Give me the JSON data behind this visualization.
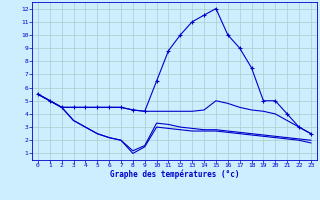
{
  "title": "Graphe des températures (°c)",
  "background_color": "#cceeff",
  "grid_color": "#aacccc",
  "line_color": "#0000cc",
  "xlim": [
    -0.5,
    23.5
  ],
  "ylim": [
    0.5,
    12.5
  ],
  "xticks": [
    0,
    1,
    2,
    3,
    4,
    5,
    6,
    7,
    8,
    9,
    10,
    11,
    12,
    13,
    14,
    15,
    16,
    17,
    18,
    19,
    20,
    21,
    22,
    23
  ],
  "yticks": [
    1,
    2,
    3,
    4,
    5,
    6,
    7,
    8,
    9,
    10,
    11,
    12
  ],
  "line1_x": [
    0,
    1,
    2,
    3,
    4,
    5,
    6,
    7,
    8,
    9,
    10,
    11,
    12,
    13,
    14,
    15,
    16,
    17,
    18,
    19,
    20,
    21,
    22,
    23
  ],
  "line1_y": [
    5.5,
    5.0,
    4.5,
    4.5,
    4.5,
    4.5,
    4.5,
    4.5,
    4.3,
    4.2,
    6.5,
    8.8,
    10.0,
    11.0,
    11.5,
    12.0,
    10.0,
    9.0,
    7.5,
    5.0,
    5.0,
    4.0,
    3.0,
    2.5
  ],
  "line2_x": [
    0,
    1,
    2,
    3,
    4,
    5,
    6,
    7,
    8,
    9,
    10,
    11,
    12,
    13,
    14,
    15,
    16,
    17,
    18,
    19,
    20,
    21,
    22,
    23
  ],
  "line2_y": [
    5.5,
    5.0,
    4.5,
    4.5,
    4.5,
    4.5,
    4.5,
    4.5,
    4.3,
    4.2,
    4.2,
    4.2,
    4.2,
    4.2,
    4.3,
    5.0,
    4.8,
    4.5,
    4.3,
    4.2,
    4.0,
    3.5,
    3.0,
    2.5
  ],
  "line3_x": [
    0,
    1,
    2,
    3,
    4,
    5,
    6,
    7,
    8,
    9,
    10,
    11,
    12,
    13,
    14,
    15,
    16,
    17,
    18,
    19,
    20,
    21,
    22,
    23
  ],
  "line3_y": [
    5.5,
    5.0,
    4.5,
    3.5,
    3.0,
    2.5,
    2.2,
    2.0,
    1.2,
    1.6,
    3.3,
    3.2,
    3.0,
    2.9,
    2.8,
    2.8,
    2.7,
    2.6,
    2.5,
    2.4,
    2.3,
    2.2,
    2.1,
    2.0
  ],
  "line4_x": [
    0,
    1,
    2,
    3,
    4,
    5,
    6,
    7,
    8,
    9,
    10,
    11,
    12,
    13,
    14,
    15,
    16,
    17,
    18,
    19,
    20,
    21,
    22,
    23
  ],
  "line4_y": [
    5.5,
    5.0,
    4.5,
    3.5,
    3.0,
    2.5,
    2.2,
    2.0,
    1.0,
    1.5,
    3.0,
    2.9,
    2.8,
    2.7,
    2.7,
    2.7,
    2.6,
    2.5,
    2.4,
    2.3,
    2.2,
    2.1,
    2.0,
    1.8
  ]
}
